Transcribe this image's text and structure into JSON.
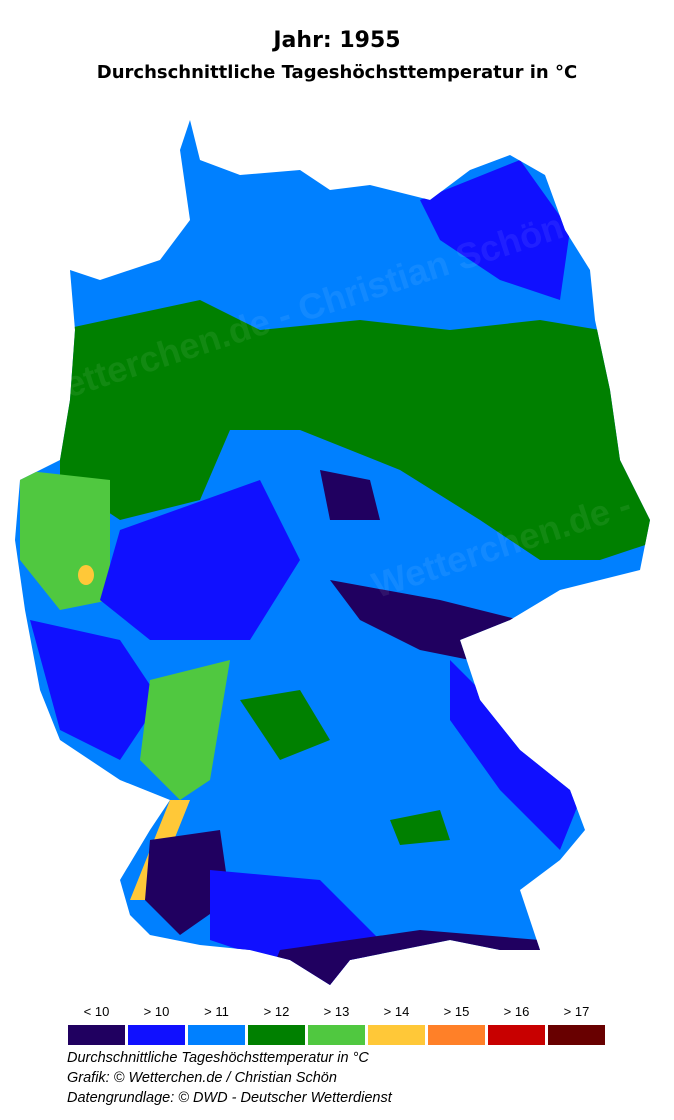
{
  "title": "Jahr: 1955",
  "subtitle": "Durchschnittliche Tageshöchsttemperatur in °C",
  "watermark": "Wetterchen.de - Christian Schön",
  "legend": [
    {
      "label": "< 10",
      "color": "#200060"
    },
    {
      "label": "> 10",
      "color": "#1010ff"
    },
    {
      "label": "> 11",
      "color": "#0080ff"
    },
    {
      "label": "> 12",
      "color": "#008000"
    },
    {
      "label": "> 13",
      "color": "#50c840"
    },
    {
      "label": "> 14",
      "color": "#ffc838"
    },
    {
      "label": "> 15",
      "color": "#ff8028"
    },
    {
      "label": "> 16",
      "color": "#c80000"
    },
    {
      "label": "> 17",
      "color": "#680000"
    }
  ],
  "footer": {
    "line1": "Durchschnittliche Tageshöchsttemperatur in °C",
    "line2": "Grafik: © Wetterchen.de / Christian Schön",
    "line3": "Datengrundlage: © DWD - Deutscher Wetterdienst"
  }
}
